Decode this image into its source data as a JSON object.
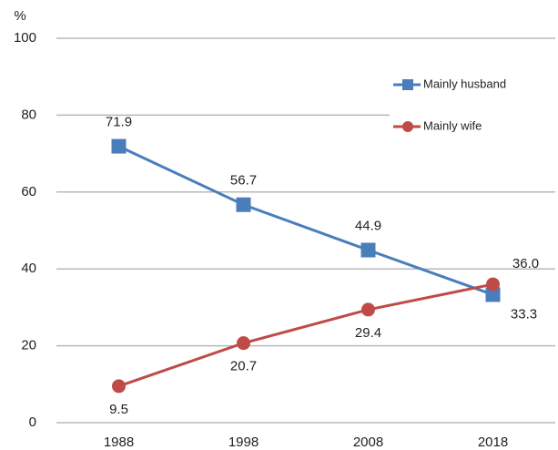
{
  "chart_data": {
    "type": "line",
    "y_label": "%",
    "categories": [
      "1988",
      "1998",
      "2008",
      "2018"
    ],
    "series": [
      {
        "name": "Mainly husband",
        "color": "#4a7ebb",
        "marker": "square",
        "values": [
          71.9,
          56.7,
          44.9,
          33.3
        ]
      },
      {
        "name": "Mainly wife",
        "color": "#be4b48",
        "marker": "circle",
        "values": [
          9.5,
          20.7,
          29.4,
          36.0
        ],
        "value_labels": [
          "9.5",
          "20.7",
          "29.4",
          "36.0"
        ]
      }
    ],
    "ylim": [
      0,
      100
    ],
    "yticks": [
      0,
      20,
      40,
      60,
      80,
      100
    ],
    "grid": true,
    "legend": "upper right"
  }
}
